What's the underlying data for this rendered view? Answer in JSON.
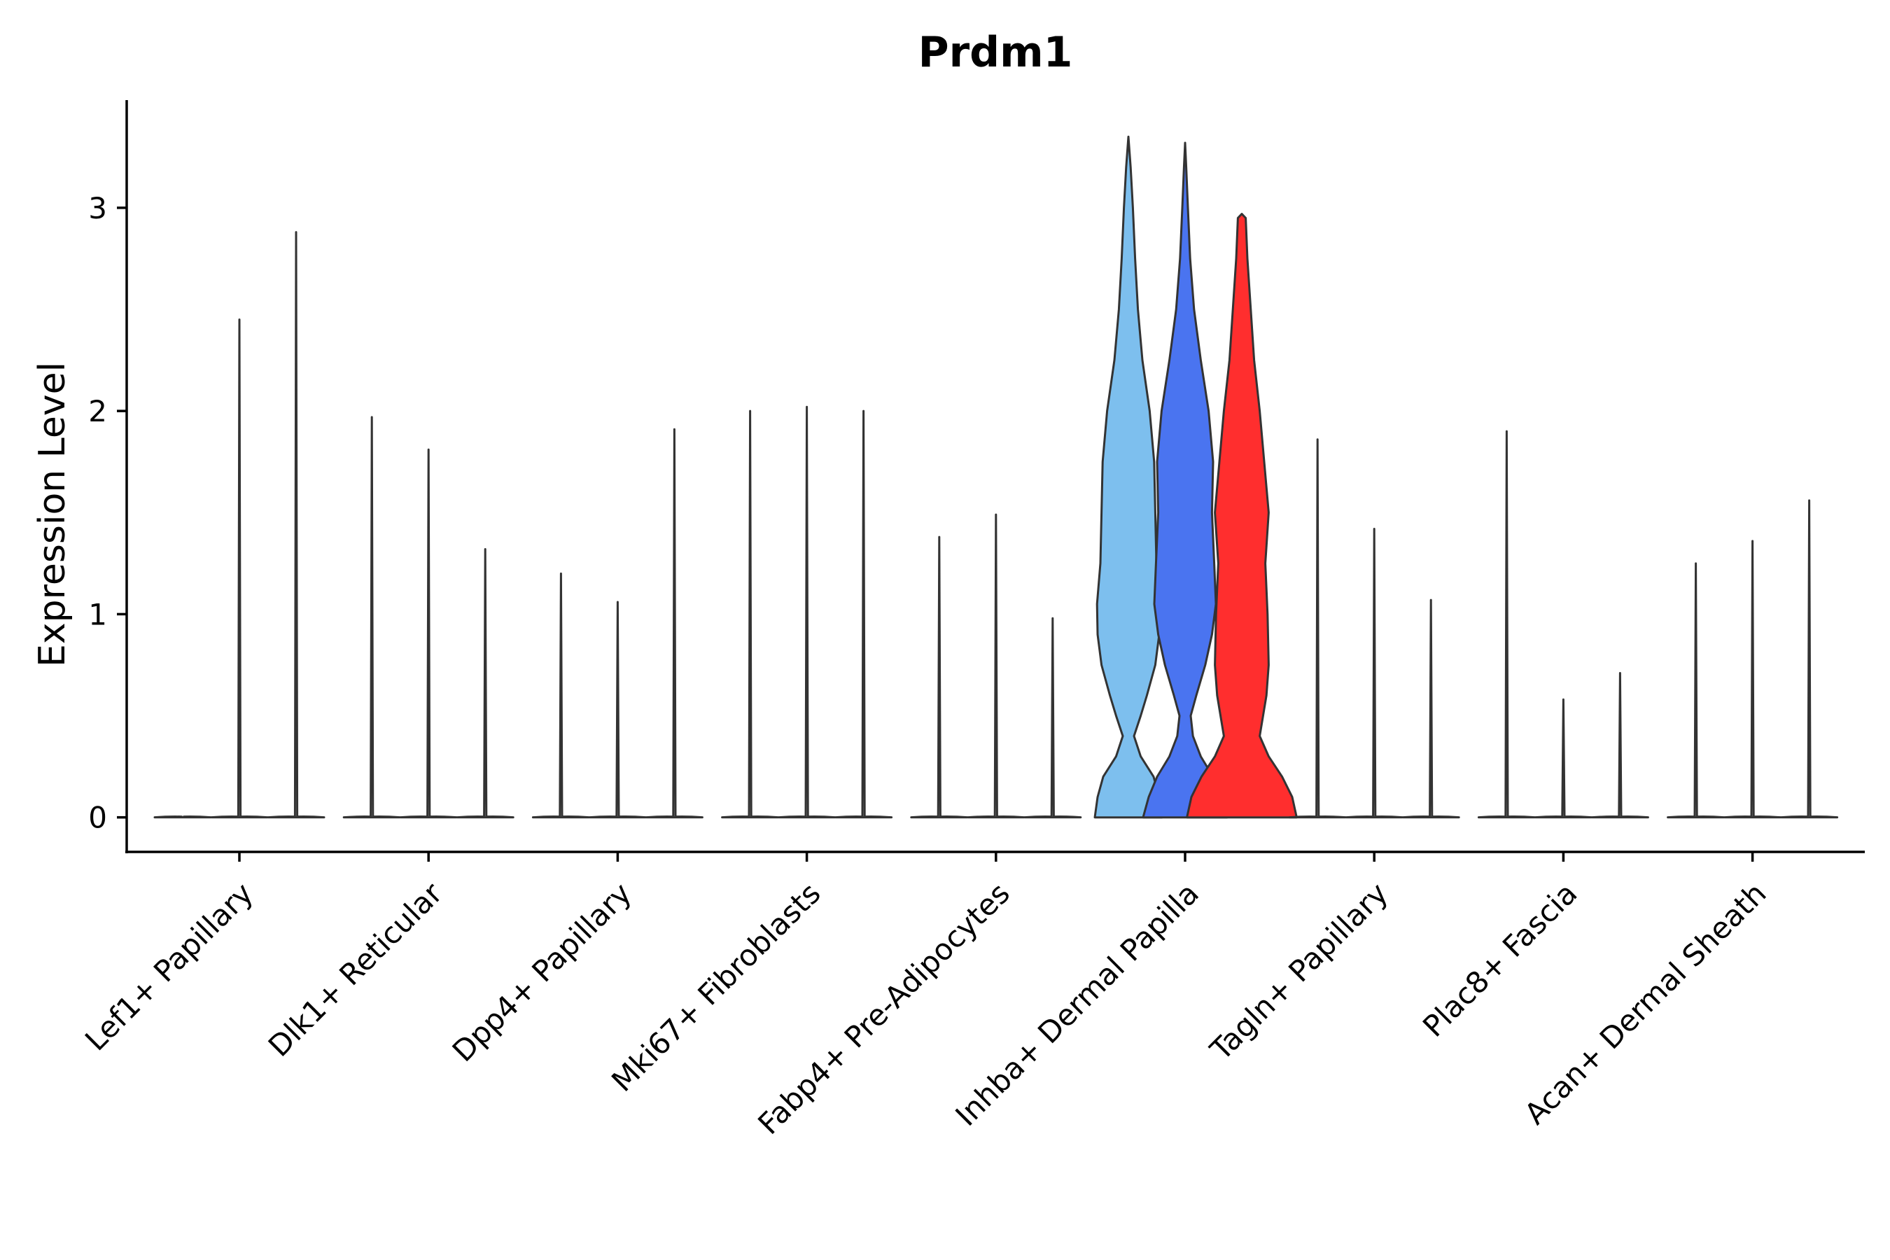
{
  "chart_data": {
    "type": "violin",
    "title": "Prdm1",
    "xlabel": "",
    "ylabel": "Expression Level",
    "ylim": [
      -0.17,
      3.53
    ],
    "yticks": [
      0,
      1,
      2,
      3
    ],
    "grid": false,
    "categories": [
      "Lef1+ Papillary",
      "Dlk1+ Reticular",
      "Dpp4+ Papillary",
      "Mki67+ Fibroblasts",
      "Fabp4+ Pre-Adipocytes",
      "Inhba+ Dermal Papilla",
      "Tagln+ Papillary",
      "Plac8+ Fascia",
      "Acan+ Dermal Sheath"
    ],
    "split_series_per_category": 3,
    "groups": [
      {
        "category": "Lef1+ Papillary",
        "violins": [
          {
            "max": 0.0,
            "color": "#ffffff"
          },
          {
            "max": 2.45,
            "color": "#ffffff"
          },
          {
            "max": 2.88,
            "color": "#ffffff"
          }
        ]
      },
      {
        "category": "Dlk1+ Reticular",
        "violins": [
          {
            "max": 1.97,
            "color": "#ffffff"
          },
          {
            "max": 1.81,
            "color": "#ffffff"
          },
          {
            "max": 1.32,
            "color": "#ffffff"
          }
        ]
      },
      {
        "category": "Dpp4+ Papillary",
        "violins": [
          {
            "max": 1.2,
            "color": "#ffffff"
          },
          {
            "max": 1.06,
            "color": "#ffffff"
          },
          {
            "max": 1.91,
            "color": "#ffffff"
          }
        ]
      },
      {
        "category": "Mki67+ Fibroblasts",
        "violins": [
          {
            "max": 2.0,
            "color": "#ffffff"
          },
          {
            "max": 2.02,
            "color": "#ffffff"
          },
          {
            "max": 2.0,
            "color": "#ffffff"
          }
        ]
      },
      {
        "category": "Fabp4+ Pre-Adipocytes",
        "violins": [
          {
            "max": 1.38,
            "color": "#ffffff"
          },
          {
            "max": 1.49,
            "color": "#ffffff"
          },
          {
            "max": 0.98,
            "color": "#ffffff"
          }
        ]
      },
      {
        "category": "Inhba+ Dermal Papilla",
        "violins": [
          {
            "max": 3.35,
            "color": "#7dbfee",
            "profile": [
              [
                0,
                0.6
              ],
              [
                0.1,
                0.55
              ],
              [
                0.2,
                0.45
              ],
              [
                0.3,
                0.22
              ],
              [
                0.4,
                0.1
              ],
              [
                0.5,
                0.22
              ],
              [
                0.6,
                0.33
              ],
              [
                0.75,
                0.48
              ],
              [
                0.9,
                0.55
              ],
              [
                1.05,
                0.56
              ],
              [
                1.25,
                0.5
              ],
              [
                1.5,
                0.48
              ],
              [
                1.75,
                0.46
              ],
              [
                2.0,
                0.38
              ],
              [
                2.25,
                0.25
              ],
              [
                2.5,
                0.17
              ],
              [
                2.75,
                0.12
              ],
              [
                3.0,
                0.08
              ],
              [
                3.2,
                0.04
              ],
              [
                3.35,
                0.0
              ]
            ]
          },
          {
            "max": 3.32,
            "color": "#4a74f0",
            "profile": [
              [
                0,
                0.75
              ],
              [
                0.1,
                0.65
              ],
              [
                0.2,
                0.5
              ],
              [
                0.3,
                0.28
              ],
              [
                0.4,
                0.14
              ],
              [
                0.5,
                0.1
              ],
              [
                0.6,
                0.2
              ],
              [
                0.75,
                0.36
              ],
              [
                0.9,
                0.48
              ],
              [
                1.05,
                0.55
              ],
              [
                1.25,
                0.52
              ],
              [
                1.5,
                0.48
              ],
              [
                1.75,
                0.5
              ],
              [
                2.0,
                0.42
              ],
              [
                2.25,
                0.28
              ],
              [
                2.5,
                0.16
              ],
              [
                2.75,
                0.09
              ],
              [
                3.0,
                0.05
              ],
              [
                3.2,
                0.02
              ],
              [
                3.32,
                0.0
              ]
            ]
          },
          {
            "max": 2.97,
            "color": "#ff2e2e",
            "profile": [
              [
                0,
                0.98
              ],
              [
                0.1,
                0.9
              ],
              [
                0.2,
                0.72
              ],
              [
                0.3,
                0.48
              ],
              [
                0.4,
                0.32
              ],
              [
                0.5,
                0.38
              ],
              [
                0.6,
                0.44
              ],
              [
                0.75,
                0.48
              ],
              [
                1.0,
                0.46
              ],
              [
                1.25,
                0.42
              ],
              [
                1.5,
                0.48
              ],
              [
                1.75,
                0.4
              ],
              [
                2.0,
                0.32
              ],
              [
                2.25,
                0.22
              ],
              [
                2.5,
                0.16
              ],
              [
                2.75,
                0.1
              ],
              [
                2.95,
                0.07
              ],
              [
                2.97,
                0.0
              ]
            ]
          }
        ]
      },
      {
        "category": "Tagln+ Papillary",
        "violins": [
          {
            "max": 1.86,
            "color": "#ffffff"
          },
          {
            "max": 1.42,
            "color": "#ffffff"
          },
          {
            "max": 1.07,
            "color": "#ffffff"
          }
        ]
      },
      {
        "category": "Plac8+ Fascia",
        "violins": [
          {
            "max": 1.9,
            "color": "#ffffff"
          },
          {
            "max": 0.58,
            "color": "#ffffff"
          },
          {
            "max": 0.71,
            "color": "#ffffff"
          }
        ]
      },
      {
        "category": "Acan+ Dermal Sheath",
        "violins": [
          {
            "max": 1.25,
            "color": "#ffffff"
          },
          {
            "max": 1.36,
            "color": "#ffffff"
          },
          {
            "max": 1.56,
            "color": "#ffffff"
          }
        ]
      }
    ]
  }
}
